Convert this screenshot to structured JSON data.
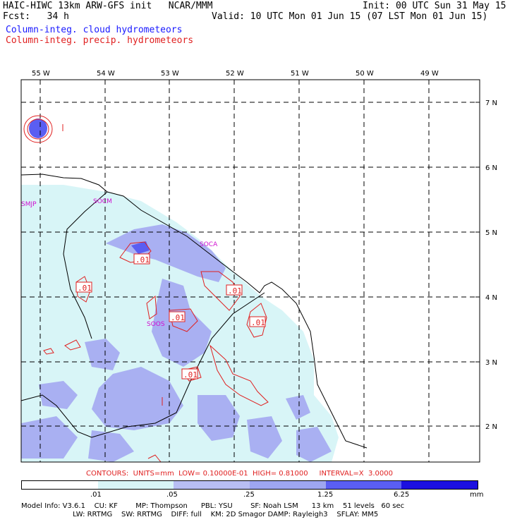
{
  "header": {
    "line1_left": "HAIC-HIWC 13km ARW-GFS init   NCAR/MMM",
    "line2_left": "Fcst:   34 h",
    "line1_right": "Init: 00 UTC Sun 31 May 15",
    "line2_right": "Valid: 10 UTC Mon 01 Jun 15 (07 LST Mon 01 Jun 15)",
    "field1": "Column-integ. cloud hydrometeors",
    "field2": "Column-integ. precip. hydrometeors"
  },
  "map": {
    "lon_labels": [
      "55 W",
      "54 W",
      "53 W",
      "52 W",
      "51 W",
      "50 W",
      "49 W"
    ],
    "lat_labels": [
      "7 N",
      "6 N",
      "5 N",
      "4 N",
      "3 N",
      "2 N"
    ],
    "station_labels": [
      "SMJP",
      "SOCM",
      "SOCA",
      "SOOS"
    ],
    "contour_labels": [
      ".01",
      ".01",
      ".01",
      ".01",
      ".01",
      ".01"
    ],
    "colors": {
      "cloud_light": "#d8f5f7",
      "cloud_mid": "#9ea6f0",
      "cloud_dark": "#5a5ef2",
      "precip_line": "#e02020",
      "station_text": "#d010d0"
    }
  },
  "contours_info": "CONTOURS:  UNITS=mm  LOW= 0.10000E-01  HIGH= 0.81000     INTERVAL=X  3.0000",
  "colorbar": {
    "ticks": [
      ".01",
      ".05",
      ".25",
      "1.25",
      "6.25",
      "mm"
    ],
    "colors": [
      "#ffffff",
      "#d8f5f7",
      "#b8bef3",
      "#9ea6f0",
      "#5a5ef2",
      "#3a3af0",
      "#1c10e0"
    ]
  },
  "footer": {
    "line1": "Model Info: V3.6.1    CU: KF        MP: Thompson      PBL: YSU        SF: Noah LSM      13 km    51 levels   60 sec",
    "line2": "                       LW: RRTMG    SW: RRTMG    DIFF: full    KM: 2D Smagor DAMP: Rayleigh3    SFLAY: MM5"
  }
}
